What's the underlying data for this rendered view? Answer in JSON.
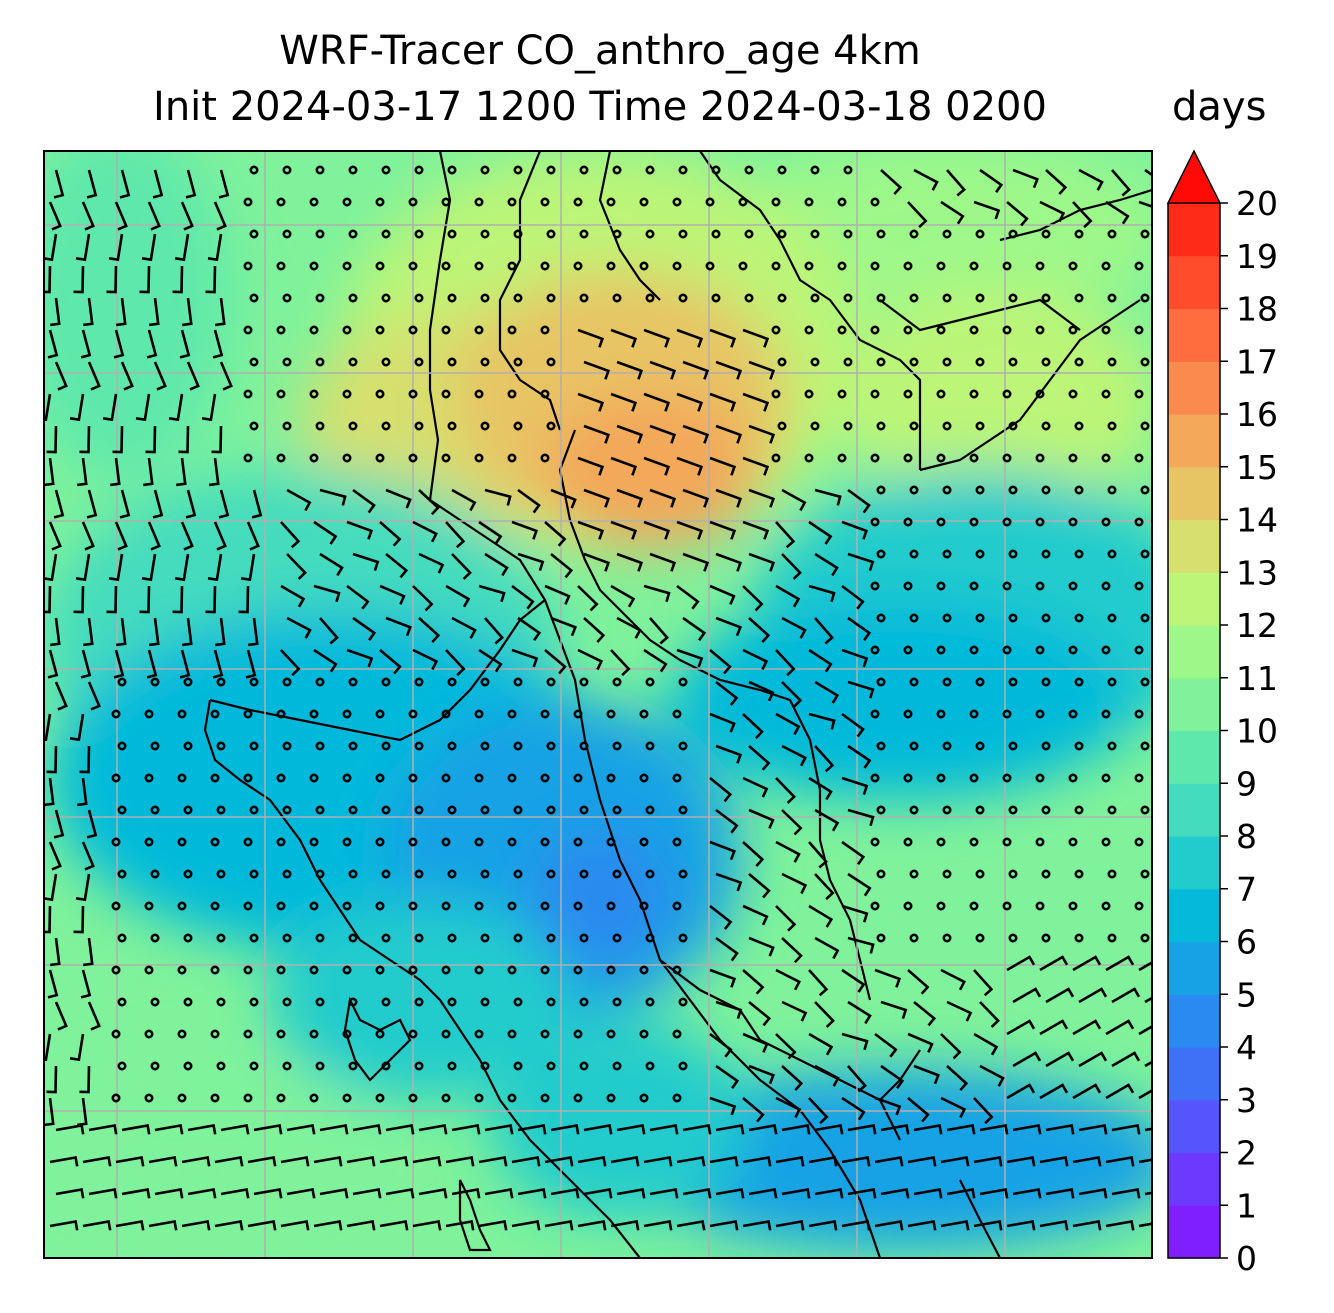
{
  "title": {
    "line1": "WRF-Tracer CO_anthro_age 4km",
    "line2": "Init 2024-03-17 1200 Time 2024-03-18 0200"
  },
  "colorbar": {
    "units": "days",
    "ticks": [
      "0",
      "1",
      "2",
      "3",
      "4",
      "5",
      "6",
      "7",
      "8",
      "9",
      "10",
      "11",
      "12",
      "13",
      "14",
      "15",
      "16",
      "17",
      "18",
      "19",
      "20"
    ],
    "extend": "max",
    "colors": [
      "#7f1eff",
      "#6d39ff",
      "#5654fc",
      "#3f71f6",
      "#2a8aef",
      "#17a2e5",
      "#05b9da",
      "#20cccc",
      "#44dcbe",
      "#5fe8ac",
      "#7ff29b",
      "#9ef889",
      "#bcf577",
      "#d6e06e",
      "#e7c565",
      "#f3a85a",
      "#fa8b4c",
      "#fe6d3d",
      "#ff4d2c",
      "#ff2b19",
      "#ff0a06"
    ]
  },
  "map": {
    "field": "CO_anthro_age",
    "gridlines": true,
    "overlay": "wind barbs"
  }
}
